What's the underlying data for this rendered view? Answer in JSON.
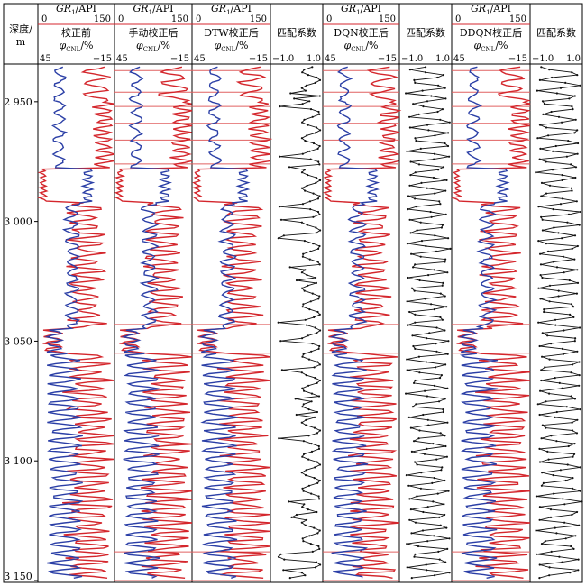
{
  "header": {
    "depth_label_1": "深度/",
    "depth_label_2": "m",
    "gr_label": "GR",
    "gr_sub": "1",
    "gr_unit": "/API",
    "phi_label": "φ",
    "phi_sub": "CNL",
    "phi_unit": "/%",
    "match_label": "匹配系数"
  },
  "colors": {
    "gr": "#d4262c",
    "cnl": "#2b3fa6",
    "match": "#111111",
    "marker": "#e06060",
    "frame": "#000000"
  },
  "chart_data": {
    "type": "line",
    "depth_axis": {
      "label": "深度/m",
      "range": [
        2935,
        3150
      ],
      "ticks": [
        "2 950",
        "3 000",
        "3 050",
        "3 100",
        "3 150"
      ],
      "tick_values": [
        2950,
        3000,
        3050,
        3100,
        3150
      ]
    },
    "log_tracks": [
      {
        "title": "校正前",
        "gr_range": [
          0,
          150
        ],
        "cnl_range": [
          45,
          -15
        ],
        "gr_ticks": [
          "0",
          "150"
        ],
        "cnl_ticks": [
          "45",
          "−15"
        ],
        "markers": []
      },
      {
        "title": "手动校正后",
        "gr_range": [
          0,
          150
        ],
        "cnl_range": [
          45,
          -15
        ],
        "gr_ticks": [
          "0",
          "150"
        ],
        "cnl_ticks": [
          "45",
          "−15"
        ],
        "markers": [
          2937,
          2946,
          2952,
          2959,
          2966,
          2976,
          3043,
          3055,
          3138,
          3150
        ]
      },
      {
        "title": "DTW校正后",
        "gr_range": [
          0,
          150
        ],
        "cnl_range": [
          45,
          -15
        ],
        "gr_ticks": [
          "0",
          "150"
        ],
        "cnl_ticks": [
          "45",
          "−15"
        ],
        "markers": [
          2937,
          2946,
          2952,
          2959,
          2966,
          2976,
          3043,
          3055,
          3138,
          3150
        ]
      },
      {
        "title": "DQN校正后",
        "gr_range": [
          0,
          150
        ],
        "cnl_range": [
          45,
          -15
        ],
        "gr_ticks": [
          "0",
          "150"
        ],
        "cnl_ticks": [
          "45",
          "−15"
        ],
        "markers": [
          2937,
          2946,
          2952,
          2959,
          2966,
          2976,
          3043,
          3055,
          3138,
          3150
        ]
      },
      {
        "title": "DDQN校正后",
        "gr_range": [
          0,
          150
        ],
        "cnl_range": [
          45,
          -15
        ],
        "gr_ticks": [
          "0",
          "150"
        ],
        "cnl_ticks": [
          "45",
          "−15"
        ],
        "markers": [
          2937,
          2946,
          2952,
          2959,
          2966,
          2976,
          3043,
          3055,
          3138,
          3150
        ]
      }
    ],
    "match_tracks": [
      {
        "title": "匹配系数",
        "range": [
          -1.0,
          1.0
        ],
        "ticks": [
          "−1.0",
          "1.0"
        ],
        "after_log_track": 2
      },
      {
        "title": "匹配系数",
        "range": [
          -1.0,
          1.0
        ],
        "ticks": [
          "−1.0",
          "1.0"
        ],
        "after_log_track": 3
      },
      {
        "title": "匹配系数",
        "range": [
          -1.0,
          1.0
        ],
        "ticks": [
          "−1.0",
          "1.0"
        ],
        "after_log_track": 4
      }
    ]
  }
}
